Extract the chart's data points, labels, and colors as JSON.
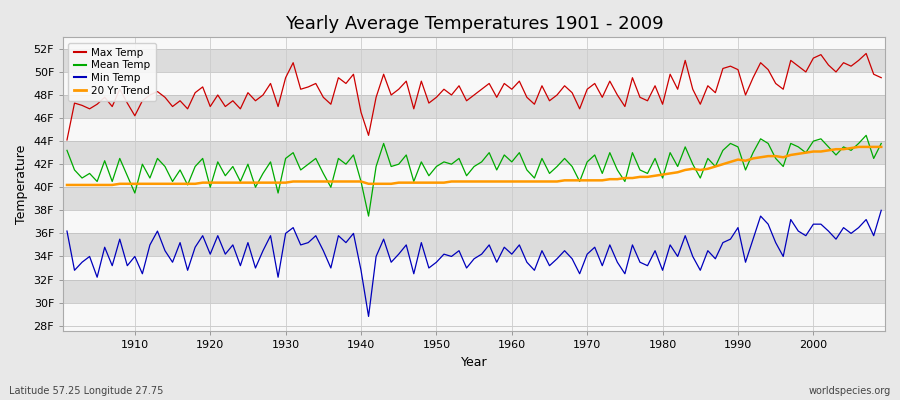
{
  "title": "Yearly Average Temperatures 1901 - 2009",
  "xlabel": "Year",
  "ylabel": "Temperature",
  "lat_lon_label": "Latitude 57.25 Longitude 27.75",
  "source_label": "worldspecies.org",
  "years": [
    1901,
    1902,
    1903,
    1904,
    1905,
    1906,
    1907,
    1908,
    1909,
    1910,
    1911,
    1912,
    1913,
    1914,
    1915,
    1916,
    1917,
    1918,
    1919,
    1920,
    1921,
    1922,
    1923,
    1924,
    1925,
    1926,
    1927,
    1928,
    1929,
    1930,
    1931,
    1932,
    1933,
    1934,
    1935,
    1936,
    1937,
    1938,
    1939,
    1940,
    1941,
    1942,
    1943,
    1944,
    1945,
    1946,
    1947,
    1948,
    1949,
    1950,
    1951,
    1952,
    1953,
    1954,
    1955,
    1956,
    1957,
    1958,
    1959,
    1960,
    1961,
    1962,
    1963,
    1964,
    1965,
    1966,
    1967,
    1968,
    1969,
    1970,
    1971,
    1972,
    1973,
    1974,
    1975,
    1976,
    1977,
    1978,
    1979,
    1980,
    1981,
    1982,
    1983,
    1984,
    1985,
    1986,
    1987,
    1988,
    1989,
    1990,
    1991,
    1992,
    1993,
    1994,
    1995,
    1996,
    1997,
    1998,
    1999,
    2000,
    2001,
    2002,
    2003,
    2004,
    2005,
    2006,
    2007,
    2008,
    2009
  ],
  "max_temp": [
    44.1,
    47.3,
    47.1,
    46.8,
    47.2,
    47.8,
    47.0,
    48.5,
    47.3,
    46.2,
    47.5,
    48.0,
    48.3,
    47.8,
    47.0,
    47.5,
    46.8,
    48.2,
    48.7,
    47.0,
    48.0,
    47.0,
    47.5,
    46.8,
    48.2,
    47.5,
    48.0,
    49.0,
    47.0,
    49.5,
    50.8,
    48.5,
    48.7,
    49.0,
    47.8,
    47.2,
    49.5,
    49.0,
    49.8,
    46.5,
    44.5,
    47.8,
    49.8,
    48.0,
    48.5,
    49.2,
    46.8,
    49.2,
    47.3,
    47.8,
    48.5,
    48.0,
    48.8,
    47.5,
    48.0,
    48.5,
    49.0,
    47.8,
    49.0,
    48.5,
    49.2,
    47.8,
    47.2,
    48.8,
    47.5,
    48.0,
    48.8,
    48.2,
    46.8,
    48.5,
    49.0,
    47.8,
    49.2,
    48.0,
    47.0,
    49.5,
    47.8,
    47.5,
    48.8,
    47.2,
    49.8,
    48.5,
    51.0,
    48.5,
    47.2,
    48.8,
    48.2,
    50.3,
    50.5,
    50.2,
    48.0,
    49.5,
    50.8,
    50.2,
    49.0,
    48.5,
    51.0,
    50.5,
    50.0,
    51.2,
    51.5,
    50.6,
    50.0,
    50.8,
    50.5,
    51.0,
    51.6,
    49.8,
    49.5
  ],
  "mean_temp": [
    43.2,
    41.5,
    40.8,
    41.2,
    40.5,
    42.3,
    40.5,
    42.5,
    41.0,
    39.5,
    42.0,
    40.8,
    42.5,
    41.8,
    40.5,
    41.5,
    40.2,
    41.8,
    42.5,
    40.0,
    42.2,
    41.0,
    41.8,
    40.5,
    42.0,
    40.0,
    41.2,
    42.2,
    39.5,
    42.5,
    43.0,
    41.5,
    42.0,
    42.5,
    41.2,
    40.0,
    42.5,
    42.0,
    42.8,
    40.5,
    37.5,
    41.8,
    43.8,
    41.8,
    42.0,
    42.8,
    40.5,
    42.2,
    41.0,
    41.8,
    42.2,
    42.0,
    42.5,
    41.0,
    41.8,
    42.2,
    43.0,
    41.5,
    42.8,
    42.2,
    43.0,
    41.5,
    40.8,
    42.5,
    41.2,
    41.8,
    42.5,
    41.8,
    40.5,
    42.2,
    42.8,
    41.2,
    43.0,
    41.5,
    40.5,
    43.0,
    41.5,
    41.2,
    42.5,
    40.8,
    43.0,
    41.8,
    43.5,
    42.0,
    40.8,
    42.5,
    41.8,
    43.2,
    43.8,
    43.5,
    41.5,
    43.0,
    44.2,
    43.8,
    42.5,
    41.8,
    43.8,
    43.5,
    43.0,
    44.0,
    44.2,
    43.5,
    42.8,
    43.5,
    43.2,
    43.8,
    44.5,
    42.5,
    43.8
  ],
  "min_temp": [
    36.2,
    32.8,
    33.5,
    34.0,
    32.2,
    34.8,
    33.2,
    35.5,
    33.2,
    34.0,
    32.5,
    35.0,
    36.2,
    34.5,
    33.5,
    35.2,
    32.8,
    34.8,
    35.8,
    34.2,
    35.8,
    34.2,
    35.0,
    33.2,
    35.2,
    33.0,
    34.5,
    35.8,
    32.2,
    36.0,
    36.5,
    35.0,
    35.2,
    35.8,
    34.5,
    33.0,
    35.8,
    35.2,
    36.0,
    32.8,
    28.8,
    34.0,
    35.5,
    33.5,
    34.2,
    35.0,
    32.5,
    35.2,
    33.0,
    33.5,
    34.2,
    34.0,
    34.5,
    33.0,
    33.8,
    34.2,
    35.0,
    33.5,
    34.8,
    34.2,
    35.0,
    33.5,
    32.8,
    34.5,
    33.2,
    33.8,
    34.5,
    33.8,
    32.5,
    34.2,
    34.8,
    33.2,
    35.0,
    33.5,
    32.5,
    35.0,
    33.5,
    33.2,
    34.5,
    32.8,
    35.0,
    34.0,
    35.8,
    34.0,
    32.8,
    34.5,
    33.8,
    35.2,
    35.5,
    36.5,
    33.5,
    35.5,
    37.5,
    36.8,
    35.2,
    34.0,
    37.2,
    36.2,
    35.8,
    36.8,
    36.8,
    36.2,
    35.5,
    36.5,
    36.0,
    36.5,
    37.2,
    35.8,
    38.0
  ],
  "trend_temp": [
    40.2,
    40.2,
    40.2,
    40.2,
    40.2,
    40.2,
    40.2,
    40.3,
    40.3,
    40.3,
    40.3,
    40.3,
    40.3,
    40.3,
    40.3,
    40.3,
    40.3,
    40.3,
    40.4,
    40.4,
    40.4,
    40.4,
    40.4,
    40.4,
    40.4,
    40.4,
    40.4,
    40.4,
    40.4,
    40.4,
    40.5,
    40.5,
    40.5,
    40.5,
    40.5,
    40.5,
    40.5,
    40.5,
    40.5,
    40.5,
    40.3,
    40.3,
    40.3,
    40.3,
    40.4,
    40.4,
    40.4,
    40.4,
    40.4,
    40.4,
    40.4,
    40.5,
    40.5,
    40.5,
    40.5,
    40.5,
    40.5,
    40.5,
    40.5,
    40.5,
    40.5,
    40.5,
    40.5,
    40.5,
    40.5,
    40.5,
    40.6,
    40.6,
    40.6,
    40.6,
    40.6,
    40.6,
    40.7,
    40.7,
    40.8,
    40.8,
    40.9,
    40.9,
    41.0,
    41.1,
    41.2,
    41.3,
    41.5,
    41.6,
    41.5,
    41.6,
    41.8,
    42.0,
    42.2,
    42.4,
    42.3,
    42.5,
    42.6,
    42.7,
    42.7,
    42.6,
    42.8,
    42.9,
    43.0,
    43.1,
    43.1,
    43.2,
    43.3,
    43.3,
    43.4,
    43.5,
    43.5,
    43.5,
    43.5
  ],
  "colors": {
    "max": "#cc0000",
    "mean": "#00aa00",
    "min": "#0000bb",
    "trend": "#ff9900",
    "fig_bg": "#e8e8e8",
    "plot_bg_white": "#f8f8f8",
    "plot_bg_gray": "#dcdcdc",
    "vgrid": "#cccccc"
  },
  "yticks": [
    28,
    30,
    32,
    34,
    36,
    38,
    40,
    42,
    44,
    46,
    48,
    50,
    52
  ],
  "ylim": [
    27.5,
    53.0
  ],
  "xlim": [
    1900.5,
    2009.5
  ],
  "xticks": [
    1910,
    1920,
    1930,
    1940,
    1950,
    1960,
    1970,
    1980,
    1990,
    2000
  ]
}
